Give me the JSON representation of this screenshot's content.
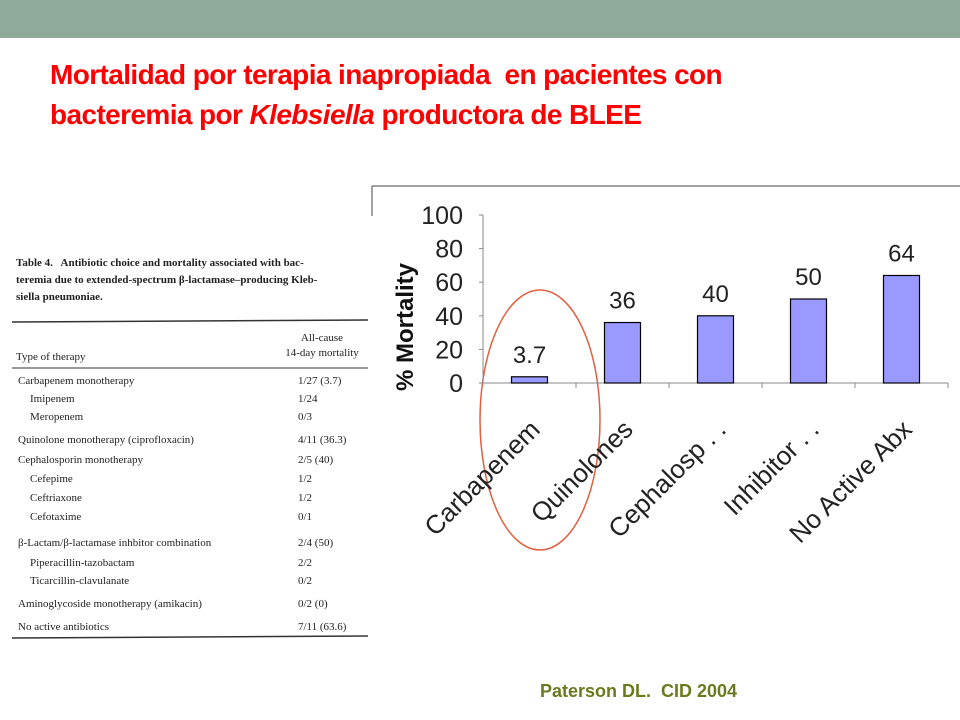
{
  "title": {
    "line1": "Mortalidad por terapia inapropiada  en pacientes con",
    "line2": [
      "bacteremia por ",
      "Klebsiella",
      " productora de BLEE"
    ]
  },
  "table": {
    "caption": [
      "Table 4.   Antibiotic choice and mortality associated with bac-",
      "teremia due to extended-spectrum β-lactamase–producing Kleb-",
      "siella pneumoniae."
    ],
    "header": {
      "therapy": "Type of therapy",
      "mortality": [
        "All-cause",
        "14-day mortality"
      ]
    },
    "rows": [
      [
        "Carbapenem monotherapy",
        "1/27 (3.7)"
      ],
      [
        "Imipenem",
        "1/24"
      ],
      [
        "Meropenem",
        "0/3"
      ],
      [
        "Quinolone monotherapy (ciprofloxacin)",
        "4/11 (36.3)"
      ],
      [
        "Cephalosporin monotherapy",
        "2/5 (40)"
      ],
      [
        "Cefepime",
        "1/2"
      ],
      [
        "Ceftriaxone",
        "1/2"
      ],
      [
        "Cefotaxime",
        "0/1"
      ],
      [
        "β-Lactam/β-lactamase inhbitor combination",
        "2/4 (50)"
      ],
      [
        "Piperacillin-tazobactam",
        "2/2"
      ],
      [
        "Ticarcillin-clavulanate",
        "0/2"
      ],
      [
        "Aminoglycoside monotherapy (amikacin)",
        "0/2 (0)"
      ],
      [
        "No active antibiotics",
        "7/11 (63.6)"
      ]
    ]
  },
  "chart_data": {
    "type": "bar",
    "y_label": "% Mortality",
    "categories": [
      "Carbapenem",
      "Quinolones",
      "Cephalosp . .",
      "Inhibitor . .",
      "No Active Abx"
    ],
    "values": [
      3.7,
      36,
      40,
      50,
      64
    ],
    "color": "#9999ff",
    "ylim": [
      0,
      100
    ],
    "yticks": [
      0,
      20,
      40,
      60,
      80,
      100
    ]
  },
  "citation": "Paterson DL.  CID 2004"
}
